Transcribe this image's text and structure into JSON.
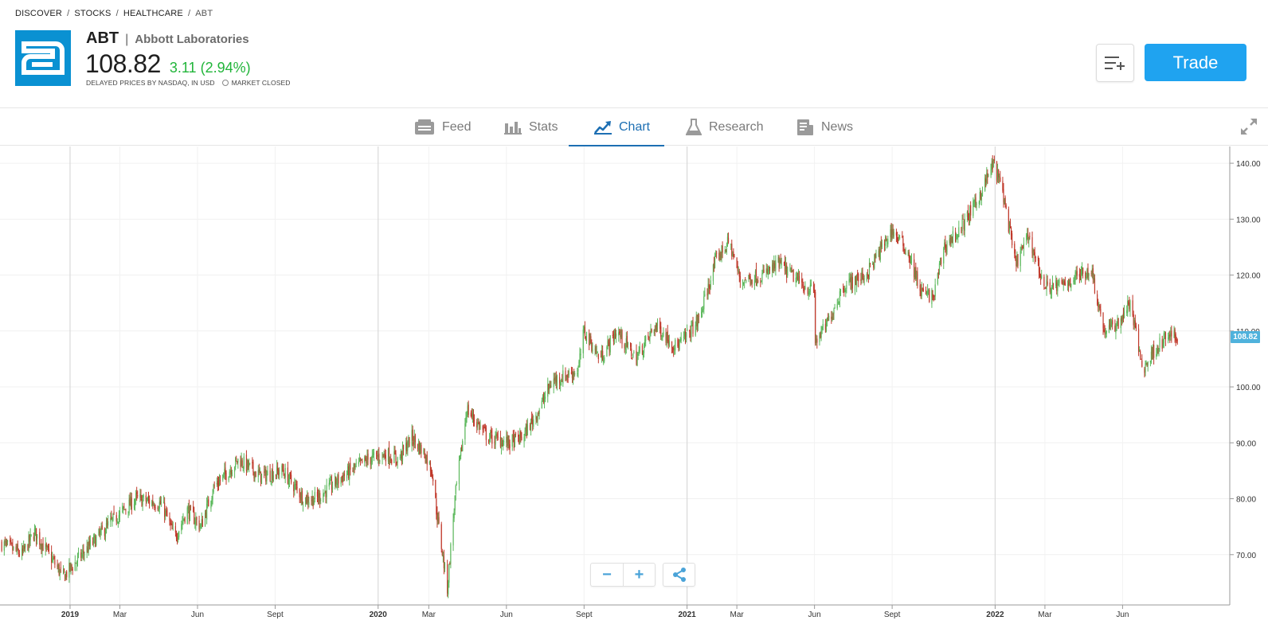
{
  "breadcrumb": {
    "items": [
      "DISCOVER",
      "STOCKS",
      "HEALTHCARE"
    ],
    "current": "ABT",
    "separator": "/"
  },
  "instrument": {
    "ticker": "ABT",
    "company": "Abbott Laboratories",
    "price": "108.82",
    "change": "3.11 (2.94%)",
    "delayed_note": "DELAYED PRICES BY NASDAQ, IN USD",
    "market_status": "MARKET CLOSED",
    "logo_color": "#0a91d2",
    "change_color": "#21b53a"
  },
  "actions": {
    "trade_label": "Trade",
    "watchlist_icon": "add-to-list-icon",
    "accent": "#1fa3f0"
  },
  "tabs": [
    {
      "label": "Feed",
      "icon": "feed-icon"
    },
    {
      "label": "Stats",
      "icon": "bar-stats-icon"
    },
    {
      "label": "Chart",
      "icon": "chart-trend-icon",
      "active": true
    },
    {
      "label": "Research",
      "icon": "flask-icon"
    },
    {
      "label": "News",
      "icon": "newspaper-icon"
    }
  ],
  "chart_controls": {
    "zoom_out": "−",
    "zoom_in": "+",
    "share_icon": "share-icon",
    "expand_icon": "expand-icon"
  },
  "chart_data": {
    "type": "candlestick",
    "up_color": "#5cb85c",
    "down_color": "#c0392b",
    "ylim": [
      61,
      143
    ],
    "y_ticks": [
      "70.00",
      "80.00",
      "90.00",
      "100.00",
      "110.00",
      "120.00",
      "130.00",
      "140.00"
    ],
    "y_tick_values": [
      70,
      80,
      90,
      100,
      110,
      120,
      130,
      140
    ],
    "x_ticks": [
      "2019",
      "Mar",
      "Jun",
      "Sept",
      "2020",
      "Mar",
      "Jun",
      "Sept",
      "2021",
      "Mar",
      "Jun",
      "Sept",
      "2022",
      "Mar",
      "Jun"
    ],
    "x_tick_dates": [
      "2019-01-01",
      "2019-03-01",
      "2019-06-01",
      "2019-09-01",
      "2020-01-01",
      "2020-03-01",
      "2020-06-01",
      "2020-09-01",
      "2021-01-01",
      "2021-03-01",
      "2021-06-01",
      "2021-09-01",
      "2022-01-01",
      "2022-03-01",
      "2022-06-01"
    ],
    "x_range": [
      "2018-10-10",
      "2022-10-06"
    ],
    "last_price_label": "108.82",
    "last_price": 108.82,
    "price_path": [
      [
        "2018-10-12",
        72
      ],
      [
        "2018-11-05",
        70
      ],
      [
        "2018-11-20",
        74
      ],
      [
        "2018-12-24",
        66
      ],
      [
        "2019-01-15",
        70
      ],
      [
        "2019-02-20",
        76
      ],
      [
        "2019-03-20",
        80
      ],
      [
        "2019-04-20",
        79
      ],
      [
        "2019-05-05",
        73
      ],
      [
        "2019-05-20",
        78
      ],
      [
        "2019-06-05",
        75
      ],
      [
        "2019-06-20",
        82
      ],
      [
        "2019-07-20",
        87
      ],
      [
        "2019-08-15",
        84
      ],
      [
        "2019-09-10",
        85
      ],
      [
        "2019-10-05",
        80
      ],
      [
        "2019-10-20",
        80
      ],
      [
        "2019-11-20",
        84
      ],
      [
        "2019-12-20",
        87
      ],
      [
        "2020-01-10",
        88
      ],
      [
        "2020-01-25",
        87
      ],
      [
        "2020-02-10",
        91
      ],
      [
        "2020-02-25",
        88
      ],
      [
        "2020-03-05",
        85
      ],
      [
        "2020-03-10",
        78
      ],
      [
        "2020-03-23",
        64
      ],
      [
        "2020-04-01",
        80
      ],
      [
        "2020-04-15",
        96
      ],
      [
        "2020-05-10",
        91
      ],
      [
        "2020-06-05",
        90
      ],
      [
        "2020-06-20",
        91
      ],
      [
        "2020-07-10",
        96
      ],
      [
        "2020-07-25",
        101
      ],
      [
        "2020-08-25",
        103
      ],
      [
        "2020-09-01",
        110
      ],
      [
        "2020-09-20",
        105
      ],
      [
        "2020-10-10",
        110
      ],
      [
        "2020-11-01",
        105
      ],
      [
        "2020-11-25",
        111
      ],
      [
        "2020-12-20",
        107
      ],
      [
        "2021-01-15",
        112
      ],
      [
        "2021-02-05",
        123
      ],
      [
        "2021-02-20",
        126
      ],
      [
        "2021-03-05",
        119
      ],
      [
        "2021-04-01",
        120
      ],
      [
        "2021-04-20",
        122
      ],
      [
        "2021-05-20",
        118
      ],
      [
        "2021-06-01",
        117
      ],
      [
        "2021-06-02",
        108
      ],
      [
        "2021-06-15",
        111
      ],
      [
        "2021-07-05",
        118
      ],
      [
        "2021-08-01",
        120
      ],
      [
        "2021-09-01",
        128
      ],
      [
        "2021-09-20",
        124
      ],
      [
        "2021-10-05",
        117
      ],
      [
        "2021-10-20",
        116
      ],
      [
        "2021-11-01",
        125
      ],
      [
        "2021-11-20",
        128
      ],
      [
        "2021-12-10",
        133
      ],
      [
        "2021-12-30",
        140
      ],
      [
        "2022-01-10",
        135
      ],
      [
        "2022-01-25",
        122
      ],
      [
        "2022-02-10",
        127
      ],
      [
        "2022-02-28",
        118
      ],
      [
        "2022-03-20",
        118
      ],
      [
        "2022-04-10",
        120
      ],
      [
        "2022-04-25",
        121
      ],
      [
        "2022-05-10",
        110
      ],
      [
        "2022-05-25",
        111
      ],
      [
        "2022-06-10",
        115
      ],
      [
        "2022-06-25",
        103
      ],
      [
        "2022-07-10",
        107
      ],
      [
        "2022-07-25",
        109
      ],
      [
        "2022-08-05",
        108.82
      ]
    ]
  }
}
